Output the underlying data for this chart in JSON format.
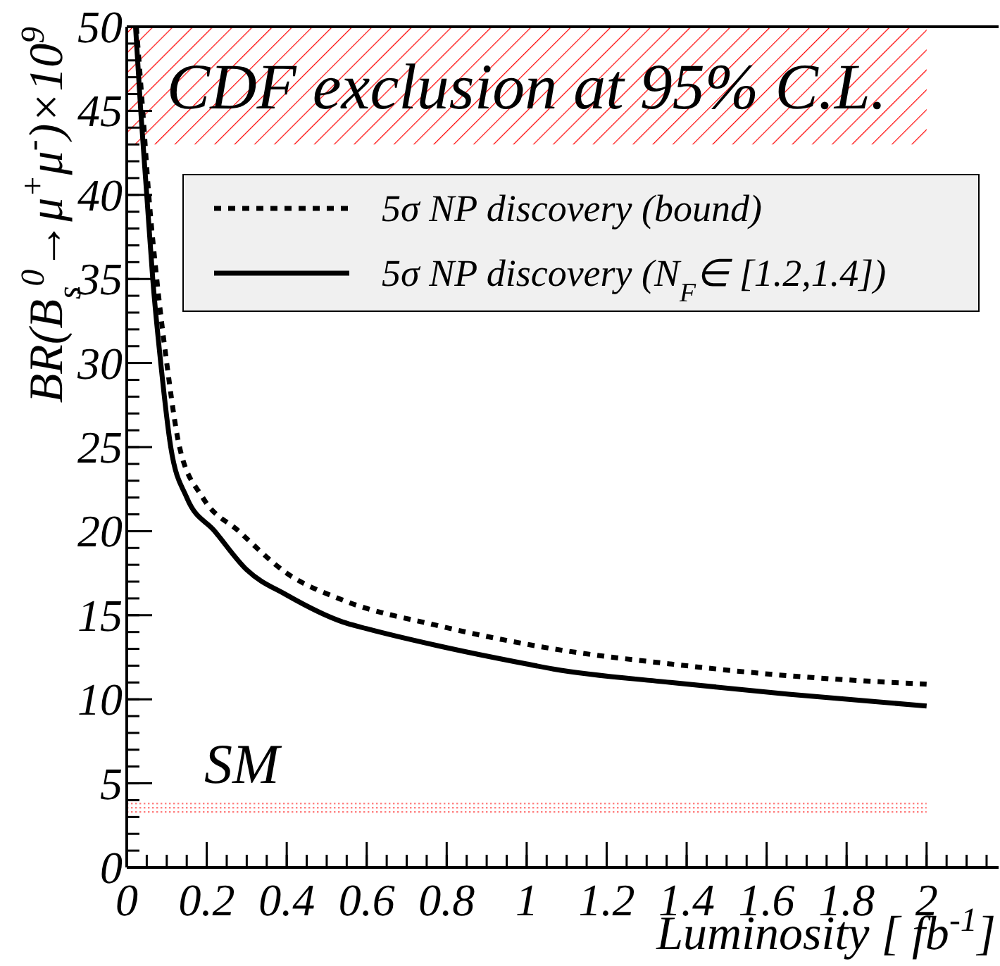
{
  "chart_data": {
    "type": "line",
    "xlabel": "Luminosity [ fb$^{-1}$]",
    "ylabel": "BR(B$_{s}$$^{0}$→μ$^{+}$μ$^{-}$)×10$^{9}$",
    "xlim": [
      0,
      2.18
    ],
    "ylim": [
      0,
      50
    ],
    "xticks": [
      0,
      0.2,
      0.4,
      0.6,
      0.8,
      1,
      1.2,
      1.4,
      1.6,
      1.8,
      2
    ],
    "yticks": [
      0,
      5,
      10,
      15,
      20,
      25,
      30,
      35,
      40,
      45,
      50
    ],
    "legend": "top right",
    "grid": false,
    "bands": [
      {
        "axis": "y",
        "from": 43,
        "to": 50,
        "label": "CDF exclusion at 95% C.L.",
        "color": "#ff0000"
      },
      {
        "axis": "y",
        "from": 3.1,
        "to": 3.85,
        "label": "SM",
        "color": "#ff8080"
      }
    ],
    "series": [
      {
        "name": "5σ NP discovery (bound)",
        "color": "#000000",
        "line_style": "dotted",
        "x": [
          0.024,
          0.04,
          0.055,
          0.075,
          0.1,
          0.132,
          0.19,
          0.28,
          0.4,
          0.54,
          0.775,
          1.067,
          1.36,
          1.655,
          2.0
        ],
        "values": [
          50,
          45,
          40,
          35,
          30,
          25,
          22,
          20,
          17.5,
          15.9,
          14.4,
          13,
          12.1,
          11.4,
          10.9
        ]
      },
      {
        "name": "5σ NP discovery (N$_{F}$∈ [1.2,1.4])",
        "color": "#000000",
        "line_style": "solid",
        "x": [
          0.022,
          0.035,
          0.05,
          0.065,
          0.085,
          0.11,
          0.15,
          0.22,
          0.3,
          0.4,
          0.54,
          0.6,
          0.775,
          1.0,
          1.067,
          1.36,
          1.655,
          2.0
        ],
        "values": [
          50,
          45,
          40,
          35,
          30,
          25,
          22,
          20,
          17.7,
          16.2,
          14.6,
          14.2,
          13.2,
          12.1,
          11.8,
          11,
          10.3,
          9.6
        ]
      }
    ]
  }
}
